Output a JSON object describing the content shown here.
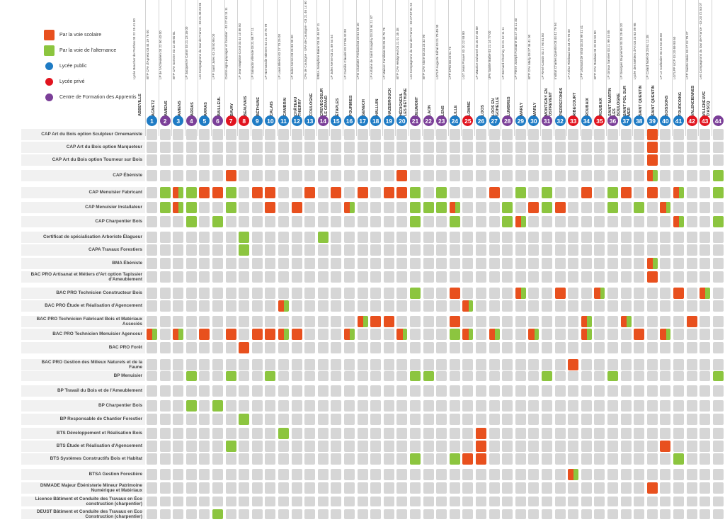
{
  "colors": {
    "scolaire": "#e8501e",
    "alternance": "#8cc53f",
    "public": "#1e7bc4",
    "prive": "#e1141f",
    "cfa": "#7b3f98",
    "empty": "#d6d6d6"
  },
  "legend": [
    {
      "kind": "square",
      "color": "scolaire",
      "label": "Par la voie scolaire"
    },
    {
      "kind": "square",
      "color": "alternance",
      "label": "Par la voie de l'alternance"
    },
    {
      "kind": "dot",
      "color": "public",
      "label": "Lycée public"
    },
    {
      "kind": "dot",
      "color": "prive",
      "label": "Lycée privé"
    },
    {
      "kind": "dot",
      "color": "cfa",
      "label": "Centre de Formation des Apprentis"
    }
  ],
  "schools": [
    {
      "n": "1",
      "city": "ABBEVILLE",
      "info": "Lycée Boucher de Perthes 03 22 25 41 00",
      "type": "public"
    },
    {
      "n": "2",
      "city": "AGNETZ",
      "info": "BTP CFA d'Agnetz 03 44 19 76 00",
      "type": "cfa"
    },
    {
      "n": "3",
      "city": "AMIENS",
      "info": "LP de l'Acheuléen 03 22 50 43 00",
      "type": "public"
    },
    {
      "n": "4",
      "city": "AMIENS",
      "info": "BTP CFA Somme 03 22 46 60 81",
      "type": "cfa"
    },
    {
      "n": "5",
      "city": "ARRAS",
      "info": "LP Jacques le Caron 03 21 23 16 00",
      "type": "public"
    },
    {
      "n": "6",
      "city": "ARRAS",
      "info": "Les Compagnons du tour de France - 03 21 48 23 86",
      "type": "cfa"
    },
    {
      "n": "7",
      "city": "BAILLEUL",
      "info": "LPP Saint Jules 03 28 50 95 00",
      "type": "prive"
    },
    {
      "n": "8",
      "city": "BAVAY",
      "info": "Centre agro-paysager et forestier - 03 27 63 11 11",
      "type": "prive"
    },
    {
      "n": "9",
      "city": "BEAUVAIS",
      "info": "LP Jean Baptiste Corot 03 44 10 86 50",
      "type": "public"
    },
    {
      "n": "10",
      "city": "BÉTHUNE",
      "info": "LP Salvador Allende 03 21 68 77 11",
      "type": "public"
    },
    {
      "n": "11",
      "city": "CALAIS",
      "info": "LP Normandie Niemen 03 21 19 75 79",
      "type": "public"
    },
    {
      "n": "12",
      "city": "CAMBRAI",
      "info": "LP Louis Blériot 03 27 73 25 00",
      "type": "public"
    },
    {
      "n": "13",
      "city": "CHÂTEAU THIERRY",
      "info": "LP Jules Verne 03 23 83 90 00",
      "type": "public"
    },
    {
      "n": "14",
      "city": "COULOGNE",
      "info": "CFA de Coulogne - UFA de Coulogne - 03 21 46 14 60",
      "type": "cfa"
    },
    {
      "n": "15",
      "city": "CREVECOEUR LE GRAND",
      "info": "ÉREA Joséphine Baker 03 44 46 87 11",
      "type": "public"
    },
    {
      "n": "16",
      "city": "ÉTAPLES",
      "info": "LP Jules Verne 03 21 89 54 54",
      "type": "public"
    },
    {
      "n": "17",
      "city": "FOURMIES",
      "info": "LP Camille Claudel 03 27 56 42 00",
      "type": "public"
    },
    {
      "n": "18",
      "city": "GENECH",
      "info": "LPO Charlotte Perriand 03 20 64 65 20",
      "type": "public"
    },
    {
      "n": "19",
      "city": "HALLUIN",
      "info": "LP Antoine de Saint Exupéry 03 20 94 21 87",
      "type": "public"
    },
    {
      "n": "20",
      "city": "HAZEBROUCK",
      "info": "LP Maison Familiale 03 28 43 76 76",
      "type": "public"
    },
    {
      "n": "21",
      "city": "HÉDIGNEUL LES BÉTHUNE",
      "info": "BTP CFA Hédigneul 03 21 01 35 38",
      "type": "cfa"
    },
    {
      "n": "22",
      "city": "JEUMONT",
      "info": "Les Compagnons du tour de France - 03 27 67 01 52",
      "type": "cfa"
    },
    {
      "n": "23",
      "city": "LAON",
      "info": "BTP CFA Aisne 03 23 23 32 90",
      "type": "cfa"
    },
    {
      "n": "24",
      "city": "LENS",
      "info": "LGTLP Auguste Béhal 03 21 79 49 00",
      "type": "public"
    },
    {
      "n": "25",
      "city": "LILLE",
      "info": "LPP EPID 03 20 51 73",
      "type": "prive"
    },
    {
      "n": "26",
      "city": "LOMME",
      "info": "LGT Jean Prouvé 03 20 22 93 80",
      "type": "public"
    },
    {
      "n": "27",
      "city": "LOOS",
      "info": "LP Maurice Duhamel 03 20 07 40 89",
      "type": "public"
    },
    {
      "n": "28",
      "city": "LOOS EN GOHELLE",
      "info": "UFA Sainte Barbe 03 21 14 77 00",
      "type": "cfa"
    },
    {
      "n": "29",
      "city": "LUMBRES",
      "info": "LP Bernard Chochoy 03 21 12 11 11",
      "type": "public"
    },
    {
      "n": "30",
      "city": "MARLY",
      "info": "LP Pierre Joseph Fontaine 03 27 28 21 40",
      "type": "public"
    },
    {
      "n": "31",
      "city": "MARLY",
      "info": "BTP CFA Marly 03 27 46 41 00",
      "type": "cfa"
    },
    {
      "n": "32",
      "city": "MONTIGNY EN OSTREVENT",
      "info": "LP René Cassin 03 27 90 81 50",
      "type": "public"
    },
    {
      "n": "33",
      "city": "PIERREFONDS",
      "info": "Institut Charles Quentin 03 44 42 79 94",
      "type": "prive"
    },
    {
      "n": "34",
      "city": "RIBECOURT",
      "info": "LP Arthur Rimbaud 03 44 75 76 00",
      "type": "public"
    },
    {
      "n": "35",
      "city": "ROUBAIX",
      "info": "LPP Léonard de Vinci 03 20 99 41 41",
      "type": "prive"
    },
    {
      "n": "36",
      "city": "ROUBAIX",
      "info": "BTP CFA Roubaix 03 20 89 53 90",
      "type": "cfa"
    },
    {
      "n": "37",
      "city": "SAINT MARTIN LES BOULOGNE",
      "info": "LP Giraux Sannier 03 21 99 45 85",
      "type": "public"
    },
    {
      "n": "38",
      "city": "SAINT POL SUR MER",
      "info": "LP Georges Guynemer 03 28 29 65 20",
      "type": "public"
    },
    {
      "n": "39",
      "city": "SAINT QUENTIN",
      "info": "Lycée des Métiers d'Art 03 23 63 09 98",
      "type": "public"
    },
    {
      "n": "40",
      "city": "SAINT QUENTIN",
      "info": "LP Colard Noël 03 23 61 11 38",
      "type": "public"
    },
    {
      "n": "41",
      "city": "SOISSONS",
      "info": "LP Le Corbusier 03 23 53 36 00",
      "type": "public"
    },
    {
      "n": "42",
      "city": "TOURCOING",
      "info": "LGTLPP UCP 03 20 69 93 60",
      "type": "prive"
    },
    {
      "n": "43",
      "city": "VALENCIENNES",
      "info": "LPP Sainte Marie 03 27 22 79 27",
      "type": "prive"
    },
    {
      "n": "44",
      "city": "VILLENEUVE D'ASCQ",
      "info": "Les Compagnons du tour de France - 03 20 72 53 07",
      "type": "cfa"
    }
  ],
  "formations": [
    {
      "label": "CAP Art du Bois option Sculpteur Ornemaniste",
      "cells": {
        "39": "s"
      }
    },
    {
      "label": "CAP Art du Bois option Marqueteur",
      "cells": {
        "39": "s"
      }
    },
    {
      "label": "CAP Art du Bois option Tourneur sur Bois",
      "cells": {
        "39": "s"
      }
    },
    {
      "label": "CAP Ébéniste",
      "cells": {
        "7": "s",
        "20": "s",
        "39": "sa",
        "44": "a"
      }
    },
    {
      "label": "CAP Menuisier Fabricant",
      "cells": {
        "2": "a",
        "3": "sa",
        "4": "a",
        "5": "s",
        "6": "s",
        "7": "a",
        "9": "s",
        "10": "s",
        "13": "s",
        "15": "s",
        "17": "s",
        "19": "s",
        "20": "s",
        "21": "a",
        "23": "a",
        "27": "s",
        "29": "a",
        "31": "a",
        "34": "s",
        "36": "a",
        "37": "s",
        "39": "s",
        "41": "sa",
        "44": "a"
      }
    },
    {
      "label": "CAP Menuisier Installateur",
      "cells": {
        "2": "a",
        "3": "sa",
        "4": "a",
        "7": "a",
        "10": "s",
        "12": "s",
        "16": "sa",
        "21": "a",
        "22": "a",
        "23": "a",
        "24": "sa",
        "28": "a",
        "30": "s",
        "31": "a",
        "32": "s",
        "36": "a",
        "38": "a",
        "40": "sa"
      }
    },
    {
      "label": "CAP Charpentier Bois",
      "cells": {
        "4": "a",
        "6": "a",
        "21": "a",
        "24": "a",
        "28": "a",
        "29": "sa",
        "41": "sa",
        "44": "a"
      }
    },
    {
      "label": "Certificat de spécialisation Arboriste Élagueur",
      "cells": {
        "8": "a",
        "14": "a"
      }
    },
    {
      "label": "CAPA Travaux Forestiers",
      "cells": {
        "8": "a"
      }
    },
    {
      "label": "BMA Ébéniste",
      "cells": {
        "39": "sa"
      }
    },
    {
      "label": "BAC PRO Artisanat et Métiers d'Art option Tapissier d'Ameublement",
      "cells": {
        "39": "s"
      }
    },
    {
      "label": "BAC PRO Technicien Constructeur Bois",
      "cells": {
        "21": "a",
        "24": "s",
        "29": "sa",
        "32": "s",
        "35": "sa",
        "41": "s",
        "43": "sa"
      }
    },
    {
      "label": "BAC PRO Étude et Réalisation d'Agencement",
      "cells": {
        "11": "sa",
        "25": "sa"
      }
    },
    {
      "label": "BAC PRO Technicien Fabricant Bois et Matériaux Associés",
      "cells": {
        "17": "sa",
        "18": "s",
        "19": "s",
        "24": "s",
        "34": "sa",
        "37": "sa",
        "42": "s"
      }
    },
    {
      "label": "BAC PRO Technicien Menuisier Agenceur",
      "cells": {
        "1": "sa",
        "3": "sa",
        "5": "s",
        "7": "s",
        "9": "s",
        "10": "s",
        "11": "sa",
        "12": "s",
        "16": "sa",
        "20": "sa",
        "24": "a",
        "25": "sa",
        "27": "sa",
        "30": "sa",
        "34": "sa",
        "38": "s",
        "40": "sa"
      }
    },
    {
      "label": "BAC PRO Forêt",
      "cells": {
        "8": "s"
      }
    },
    {
      "label": "BAC PRO Gestion des Milieux Naturels et de la Faune",
      "cells": {
        "33": "s"
      }
    },
    {
      "label": "BP Menuisier",
      "cells": {
        "4": "a",
        "7": "a",
        "10": "a",
        "21": "a",
        "22": "a",
        "31": "a",
        "36": "a",
        "44": "a"
      }
    },
    {
      "label": "BP Travail du Bois et de l'Ameublement",
      "cells": {}
    },
    {
      "label": "BP Charpentier Bois",
      "cells": {
        "4": "a",
        "6": "a"
      }
    },
    {
      "label": "BP Responsable de Chantier Forestier",
      "cells": {
        "8": "a"
      }
    },
    {
      "label": "BTS Développement et Réalisation Bois",
      "cells": {
        "11": "a",
        "26": "s"
      }
    },
    {
      "label": "BTS Étude et Réalisation d'Agencement",
      "cells": {
        "7": "a",
        "26": "s",
        "40": "s"
      }
    },
    {
      "label": "BTS Systèmes Constructifs Bois et Habitat",
      "cells": {
        "21": "a",
        "24": "a",
        "25": "s",
        "26": "s",
        "41": "a"
      }
    },
    {
      "label": "BTSA  Gestion Forestière",
      "cells": {
        "33": "sa"
      }
    },
    {
      "label": "DNMADE Majeur Ébénisterie Mineur Patrimoine Numérique et Matériaux",
      "cells": {
        "39": "s"
      }
    },
    {
      "label": "Licence Bâtiment et Conduite des Travaux en Éco construction (charpentier)",
      "cells": {}
    },
    {
      "label": "DEUST Bâtiment et Conduite des Travaux en Eco Construction (charpentier)",
      "cells": {
        "6": "a"
      }
    }
  ]
}
